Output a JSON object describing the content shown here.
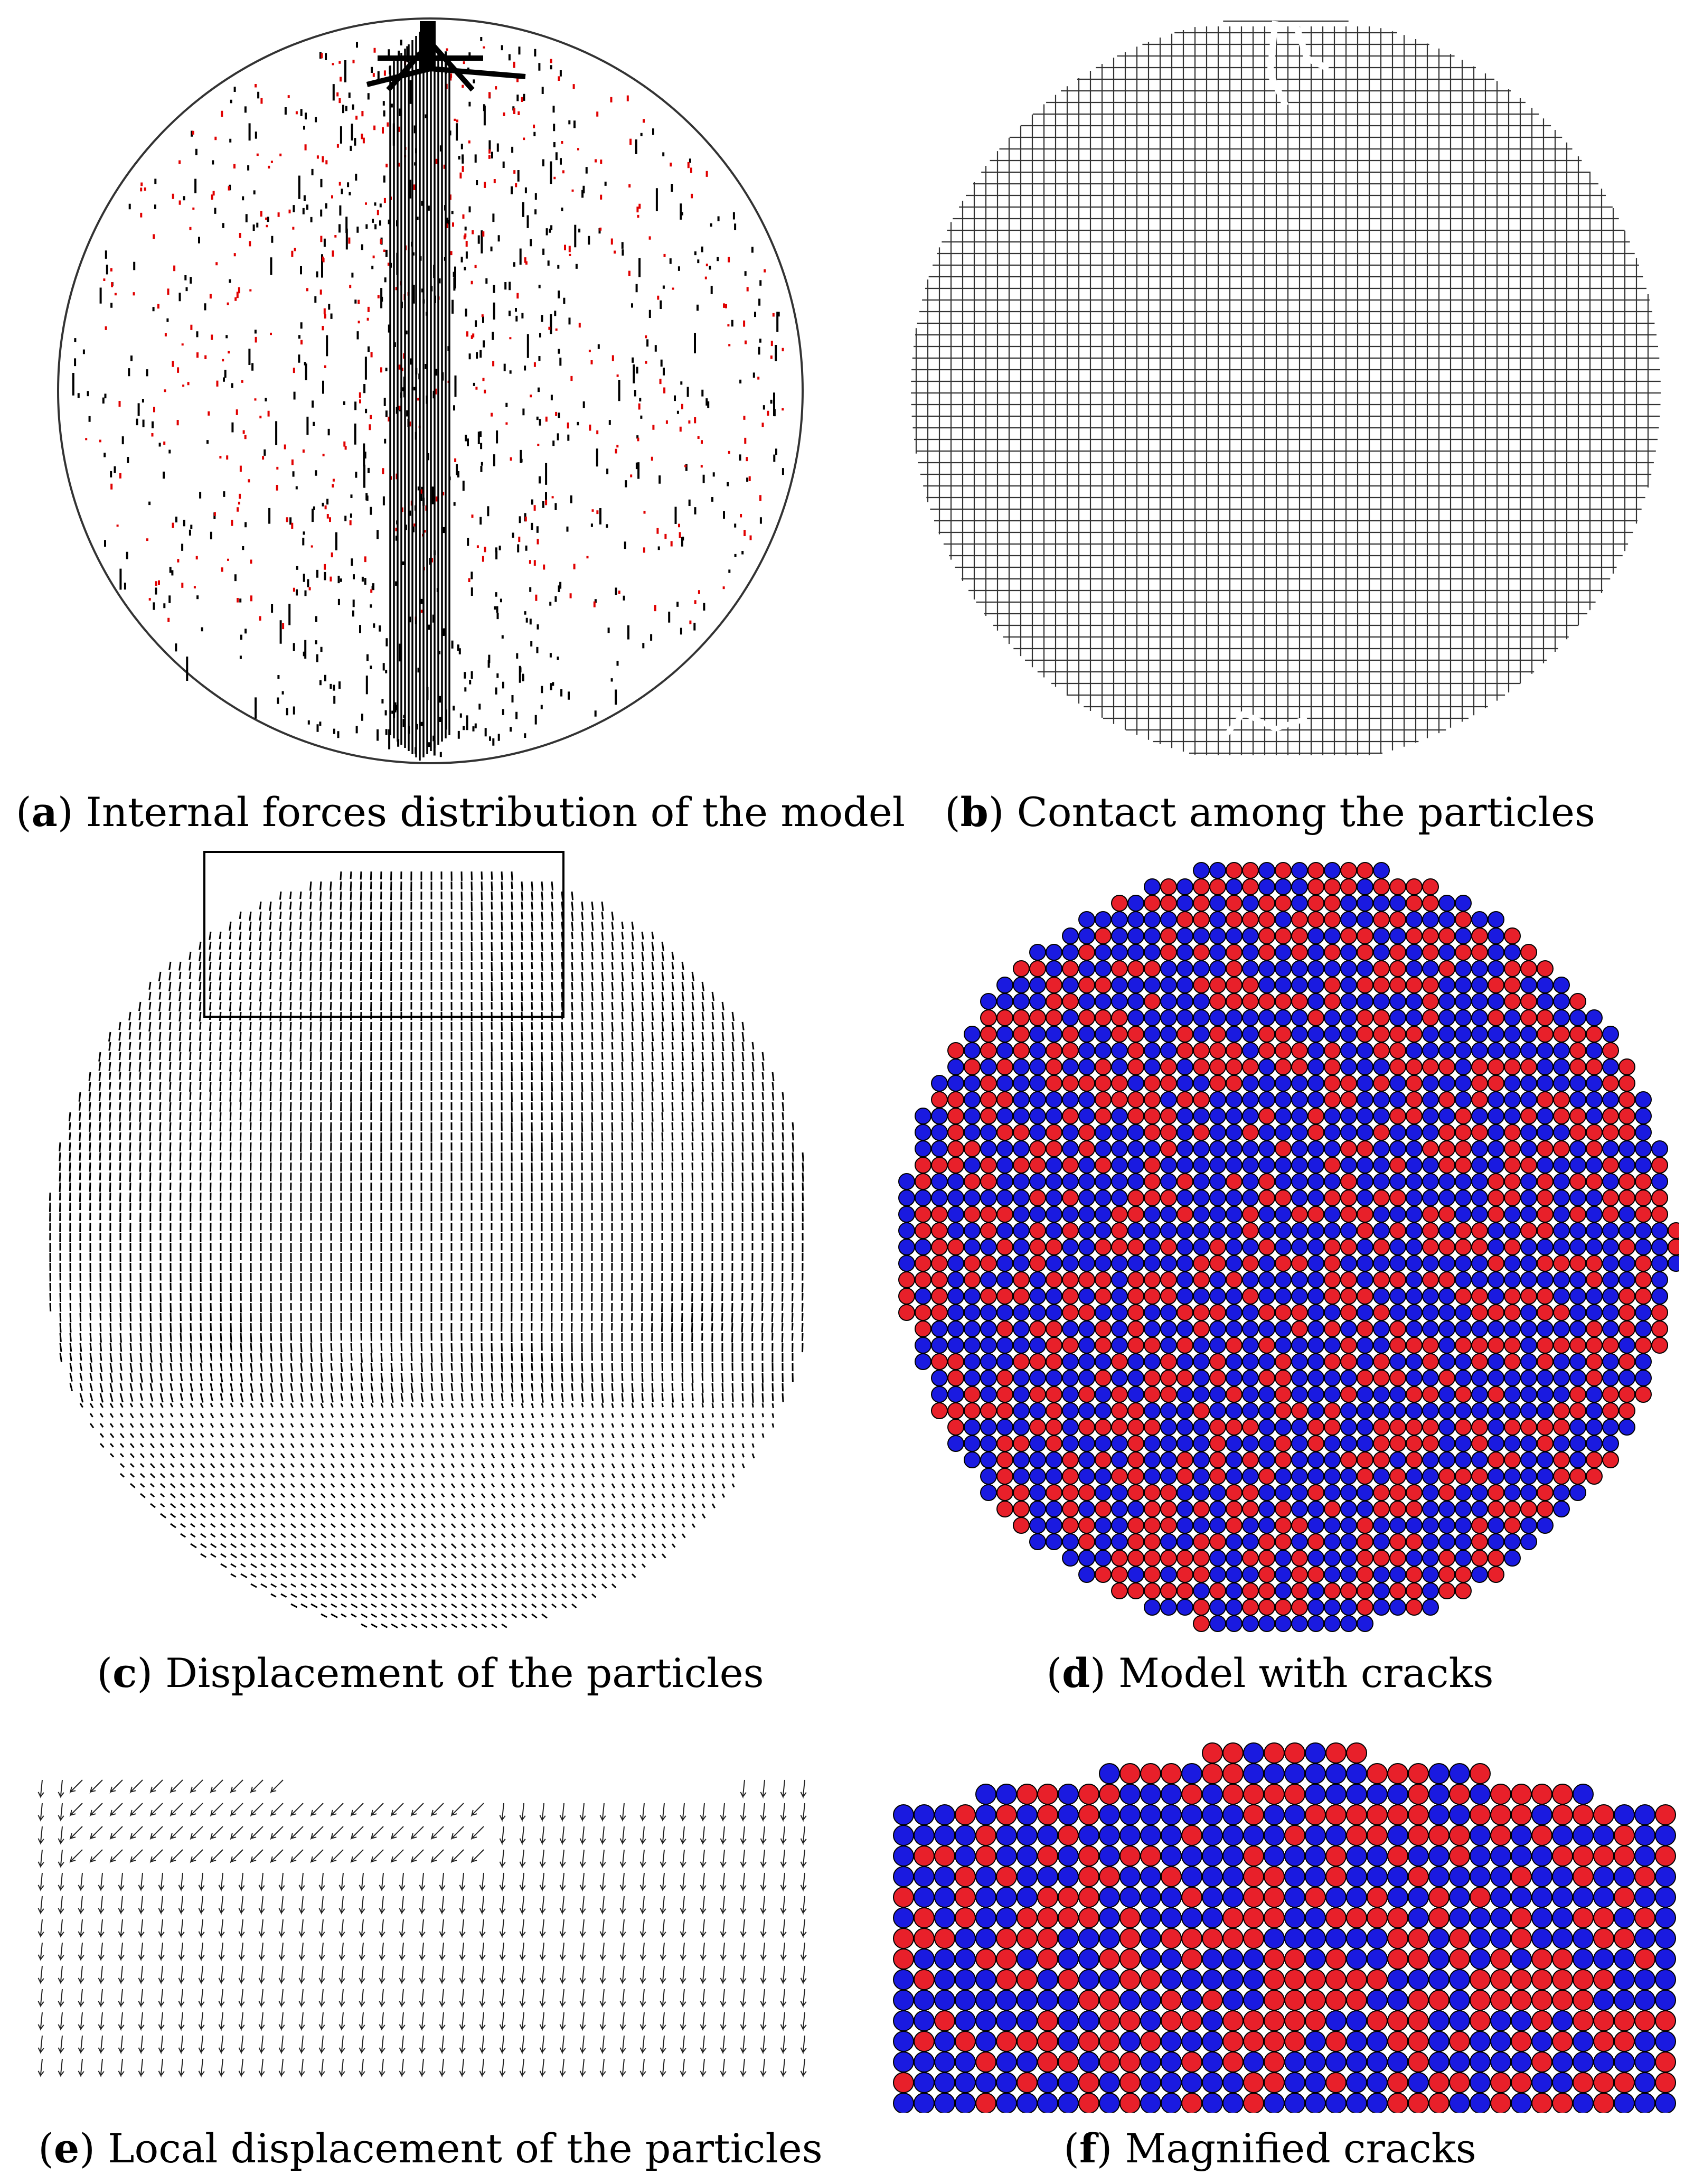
{
  "colors": {
    "tension": "#e00000",
    "compression": "#000000",
    "particle_red": "#e8202a",
    "particle_blue": "#1a1ae0",
    "outline": "#000000",
    "background": "#ffffff"
  },
  "panels": [
    {
      "id": "a",
      "letter": "a",
      "caption": "Internal forces distribution of the model"
    },
    {
      "id": "b",
      "letter": "b",
      "caption": "Contact among the particles"
    },
    {
      "id": "c",
      "letter": "c",
      "caption": "Displacement of the particles"
    },
    {
      "id": "d",
      "letter": "d",
      "caption": "Model with cracks"
    },
    {
      "id": "e",
      "letter": "e",
      "caption": "Local displacement of the particles"
    },
    {
      "id": "f",
      "letter": "f",
      "caption": "Magnified cracks"
    }
  ]
}
